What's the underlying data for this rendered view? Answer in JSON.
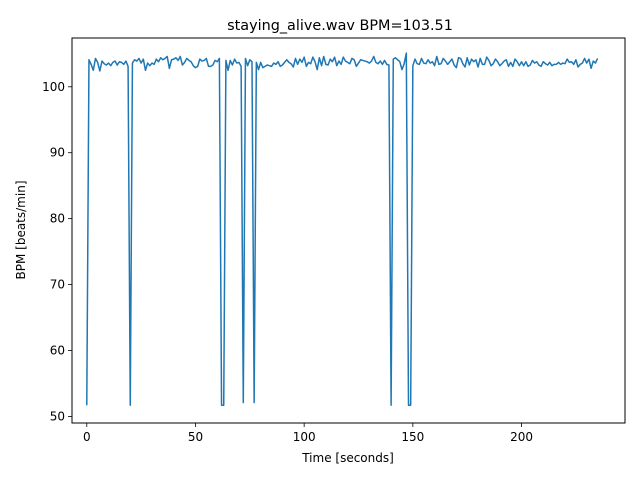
{
  "chart_data": {
    "type": "line",
    "title": "staying_alive.wav BPM=103.51",
    "xlabel": "Time [seconds]",
    "ylabel": "BPM [beats/min]",
    "xlim": [
      -6.8,
      247.6
    ],
    "ylim": [
      49.0,
      107.4
    ],
    "xticks": [
      0,
      50,
      100,
      150,
      200
    ],
    "yticks": [
      50,
      60,
      70,
      80,
      90,
      100
    ],
    "grid": false,
    "series": [
      {
        "color": "#1f77b4",
        "x": [
          0,
          1,
          2,
          3,
          4,
          5,
          6,
          7,
          8,
          9,
          10,
          11,
          12,
          13,
          14,
          15,
          16,
          17,
          18,
          19,
          20,
          21,
          22,
          23,
          24,
          25,
          26,
          27,
          28,
          29,
          30,
          31,
          32,
          33,
          34,
          35,
          36,
          37,
          38,
          39,
          40,
          41,
          42,
          43,
          44,
          45,
          46,
          47,
          48,
          49,
          50,
          51,
          52,
          53,
          54,
          55,
          56,
          57,
          58,
          59,
          60,
          61,
          62,
          63,
          64,
          65,
          66,
          67,
          68,
          69,
          70,
          71,
          72,
          73,
          74,
          75,
          76,
          77,
          78,
          79,
          80,
          81,
          82,
          83,
          84,
          85,
          86,
          87,
          88,
          89,
          90,
          91,
          92,
          93,
          94,
          95,
          96,
          97,
          98,
          99,
          100,
          101,
          102,
          103,
          104,
          105,
          106,
          107,
          108,
          109,
          110,
          111,
          112,
          113,
          114,
          115,
          116,
          117,
          118,
          119,
          120,
          121,
          122,
          123,
          124,
          125,
          126,
          127,
          128,
          129,
          130,
          131,
          132,
          133,
          134,
          135,
          136,
          137,
          138,
          139,
          140,
          141,
          142,
          143,
          144,
          145,
          146,
          147,
          148,
          149,
          150,
          151,
          152,
          153,
          154,
          155,
          156,
          157,
          158,
          159,
          160,
          161,
          162,
          163,
          164,
          165,
          166,
          167,
          168,
          169,
          170,
          171,
          172,
          173,
          174,
          175,
          176,
          177,
          178,
          179,
          180,
          181,
          182,
          183,
          184,
          185,
          186,
          187,
          188,
          189,
          190,
          191,
          192,
          193,
          194,
          195,
          196,
          197,
          198,
          199,
          200,
          201,
          202,
          203,
          204,
          205,
          206,
          207,
          208,
          209,
          210,
          211,
          212,
          213,
          214,
          215,
          216,
          217,
          218,
          219,
          220,
          221,
          222,
          223,
          224,
          225,
          226,
          227,
          228,
          229,
          230,
          231,
          232,
          233,
          234,
          235
        ],
        "y": [
          51.7,
          104.1,
          103.4,
          102.5,
          104.3,
          103.7,
          102.4,
          103.9,
          103.5,
          103.3,
          103.6,
          103.2,
          103.7,
          103.9,
          103.3,
          103.8,
          103.7,
          103.4,
          103.9,
          103.1,
          51.7,
          103.6,
          104.1,
          103.9,
          104.3,
          103.6,
          104.2,
          102.5,
          103.6,
          103.2,
          103.6,
          103.4,
          104.2,
          103.8,
          104.4,
          104.1,
          104.3,
          104.6,
          102.8,
          104.1,
          104.2,
          104.4,
          104.0,
          104.6,
          103.3,
          103.7,
          104.3,
          104.0,
          103.8,
          103.2,
          102.9,
          103.1,
          104.2,
          103.9,
          104.0,
          104.3,
          103.1,
          103.1,
          103.3,
          104.0,
          103.8,
          104.3,
          51.7,
          51.7,
          104.0,
          102.5,
          104.0,
          103.3,
          104.2,
          103.6,
          103.7,
          103.1,
          52.1,
          104.3,
          103.2,
          104.1,
          103.8,
          52.1,
          103.7,
          102.6,
          103.7,
          102.9,
          103.1,
          103.3,
          103.2,
          103.1,
          103.6,
          103.4,
          103.8,
          103.1,
          103.3,
          103.7,
          104.1,
          103.7,
          103.5,
          103.0,
          104.3,
          103.4,
          104.2,
          103.7,
          104.5,
          103.1,
          103.7,
          103.5,
          104.5,
          103.8,
          102.6,
          104.4,
          103.2,
          104.6,
          103.4,
          103.3,
          104.2,
          103.8,
          104.5,
          103.2,
          103.9,
          103.4,
          104.5,
          103.9,
          103.7,
          103.5,
          104.3,
          104.1,
          103.1,
          103.6,
          104.1,
          104.0,
          103.9,
          103.8,
          103.6,
          103.9,
          104.6,
          103.7,
          103.5,
          103.9,
          103.4,
          104.0,
          103.4,
          103.3,
          51.7,
          104.2,
          104.4,
          104.1,
          103.8,
          102.6,
          103.5,
          105.1,
          51.7,
          51.7,
          103.2,
          104.2,
          103.5,
          103.4,
          104.3,
          103.6,
          103.5,
          104.1,
          103.6,
          103.8,
          103.2,
          104.6,
          103.4,
          103.5,
          104.3,
          103.9,
          103.4,
          103.8,
          104.2,
          103.3,
          102.9,
          104.4,
          104.3,
          103.5,
          103.0,
          104.4,
          103.3,
          104.2,
          103.8,
          104.1,
          103.0,
          104.3,
          103.4,
          103.4,
          104.5,
          104.0,
          103.2,
          103.5,
          104.2,
          103.8,
          103.2,
          103.5,
          103.9,
          104.1,
          103.1,
          103.7,
          103.1,
          104.2,
          103.8,
          103.2,
          103.8,
          103.2,
          103.8,
          103.1,
          103.3,
          104.0,
          103.6,
          103.8,
          103.3,
          103.1,
          103.8,
          103.5,
          103.3,
          103.7,
          103.2,
          103.4,
          103.4,
          103.7,
          103.4,
          103.6,
          103.5,
          104.2,
          103.7,
          103.8,
          103.4,
          104.1,
          103.0,
          103.4,
          103.6,
          104.3,
          103.6,
          104.2,
          102.8,
          103.9,
          103.6,
          104.3
        ]
      }
    ]
  }
}
